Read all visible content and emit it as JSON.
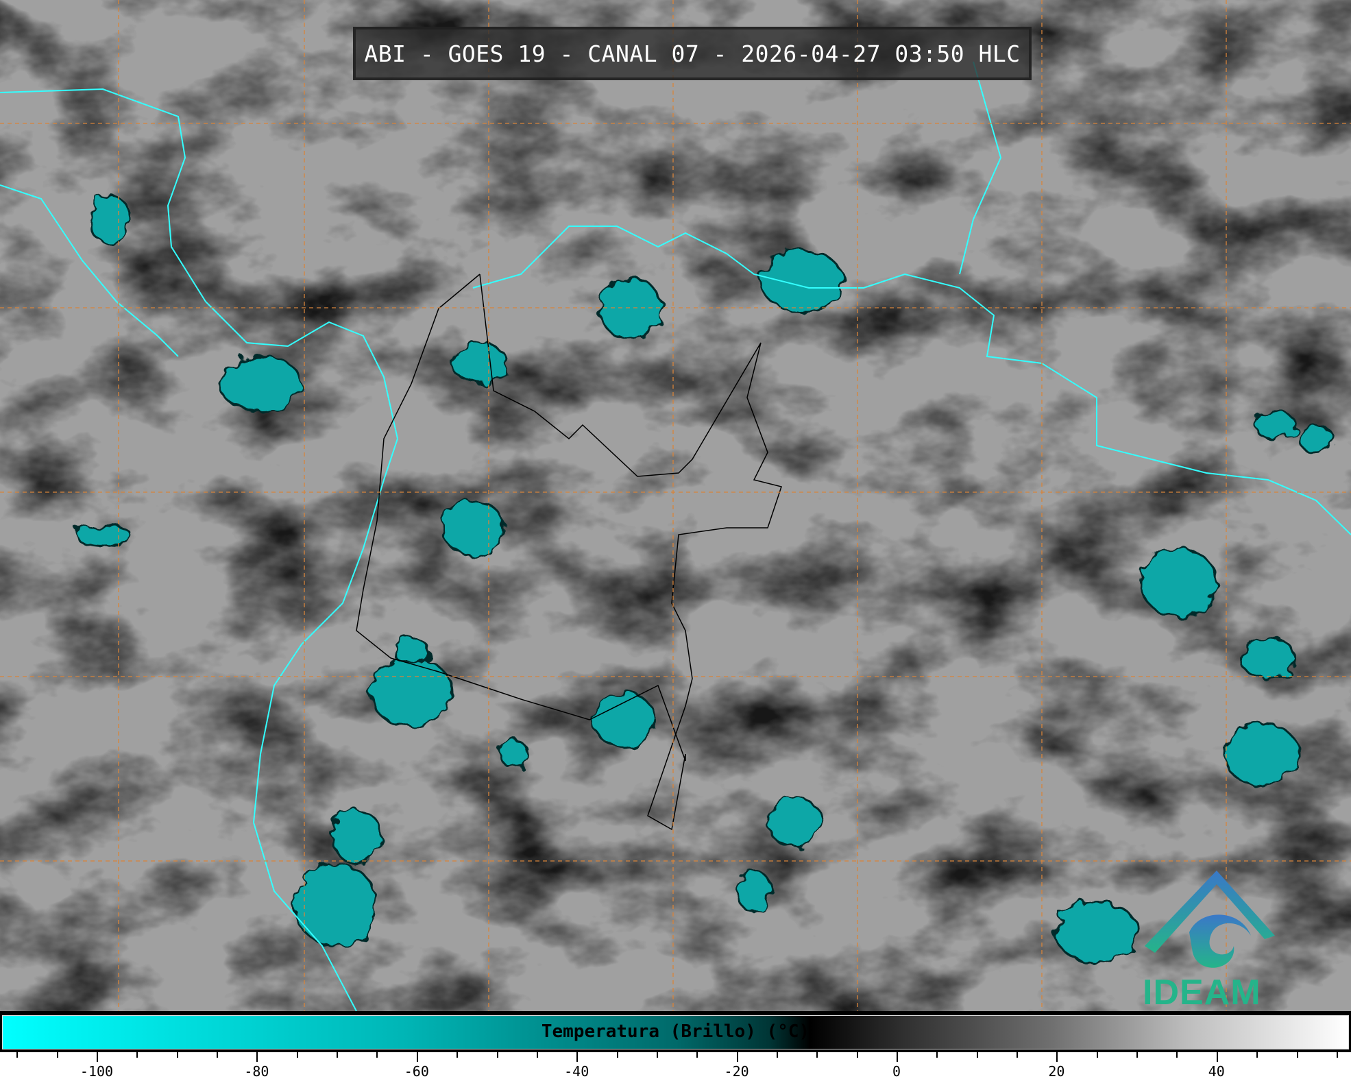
{
  "title": "ABI - GOES 19 - CANAL 07 - 2026-04-27 03:50 HLC",
  "logo_text": "IDEAM",
  "colorbar": {
    "label": "Temperatura (Brillo) (°C)",
    "range": [
      -112,
      57
    ],
    "major_ticks": [
      -100,
      -80,
      -60,
      -40,
      -20,
      0,
      20,
      40
    ],
    "tick_labels": [
      "-100",
      "-80",
      "-60",
      "-40",
      "-20",
      "0",
      "20",
      "40"
    ],
    "minor_tick_step": 5,
    "colors": {
      "cold": "#00ffff",
      "mid": "#000000",
      "warm": "#ffffff"
    }
  },
  "colors": {
    "grid": "#d8843a",
    "coastline": "#33ffff",
    "borders": "#000000",
    "logo": "#25b48a"
  }
}
